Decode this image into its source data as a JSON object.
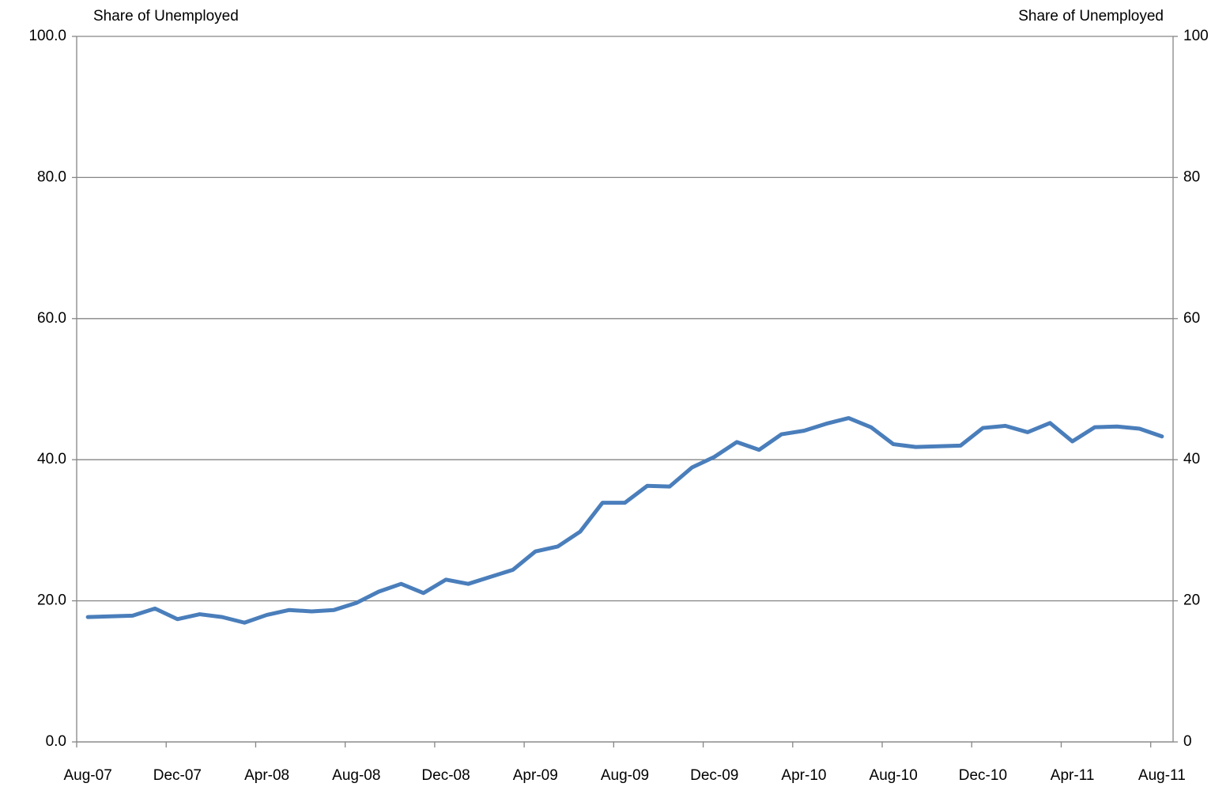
{
  "chart_data": {
    "type": "line",
    "ylabel": "Share of Unemployed",
    "y2label": "Share of Unemployed",
    "categories": [
      "Aug-07",
      null,
      null,
      null,
      "Dec-07",
      null,
      null,
      null,
      "Apr-08",
      null,
      null,
      null,
      "Aug-08",
      null,
      null,
      null,
      "Dec-08",
      null,
      null,
      null,
      "Apr-09",
      null,
      null,
      null,
      "Aug-09",
      null,
      null,
      null,
      "Dec-09",
      null,
      null,
      null,
      "Apr-10",
      null,
      null,
      null,
      "Aug-10",
      null,
      null,
      null,
      "Dec-10",
      null,
      null,
      null,
      "Apr-11",
      null,
      null,
      null,
      "Aug-11"
    ],
    "series": [
      {
        "color": "#4a7ebb",
        "values": [
          17.7,
          17.8,
          17.9,
          18.9,
          17.4,
          18.1,
          17.7,
          16.9,
          18.0,
          18.7,
          18.5,
          18.7,
          19.7,
          21.3,
          22.4,
          21.1,
          23.0,
          22.4,
          23.4,
          24.4,
          27.0,
          27.7,
          29.8,
          33.9,
          33.9,
          36.3,
          36.2,
          38.9,
          40.4,
          42.5,
          41.4,
          43.6,
          44.1,
          45.1,
          45.9,
          44.6,
          42.2,
          41.8,
          41.9,
          42.0,
          44.5,
          44.8,
          43.9,
          45.2,
          42.6,
          44.6,
          44.7,
          44.4,
          43.3
        ]
      }
    ],
    "ylim": [
      0,
      100
    ],
    "yticks": [
      {
        "value": 0,
        "label": "0.0"
      },
      {
        "value": 20,
        "label": "20.0"
      },
      {
        "value": 40,
        "label": "40.0"
      },
      {
        "value": 60,
        "label": "60.0"
      },
      {
        "value": 80,
        "label": "80.0"
      },
      {
        "value": 100,
        "label": "100.0"
      }
    ],
    "y2lim": [
      0,
      100
    ],
    "y2ticks": [
      0,
      20,
      40,
      60,
      80,
      100
    ],
    "grid": true
  }
}
